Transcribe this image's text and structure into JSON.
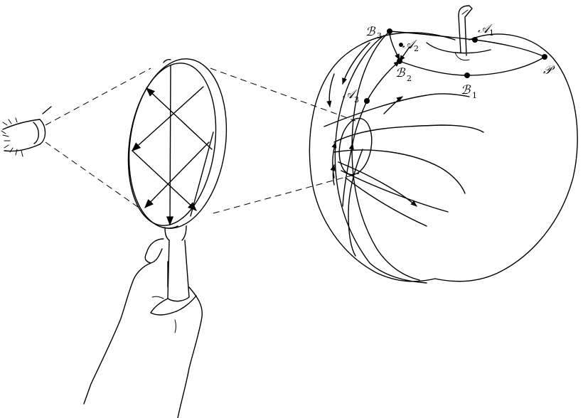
{
  "labels": {
    "A1": {
      "letter": "𝒜",
      "sub": "1"
    },
    "A2": {
      "letter": "𝒜",
      "sub": "2"
    },
    "A3": {
      "letter": "𝒜",
      "sub": "3"
    },
    "B1": {
      "letter": "ℬ",
      "sub": "1"
    },
    "B2": {
      "letter": "ℬ",
      "sub": "2"
    },
    "B3": {
      "letter": "ℬ",
      "sub": "3"
    },
    "P": {
      "letter": "𝒫"
    }
  }
}
